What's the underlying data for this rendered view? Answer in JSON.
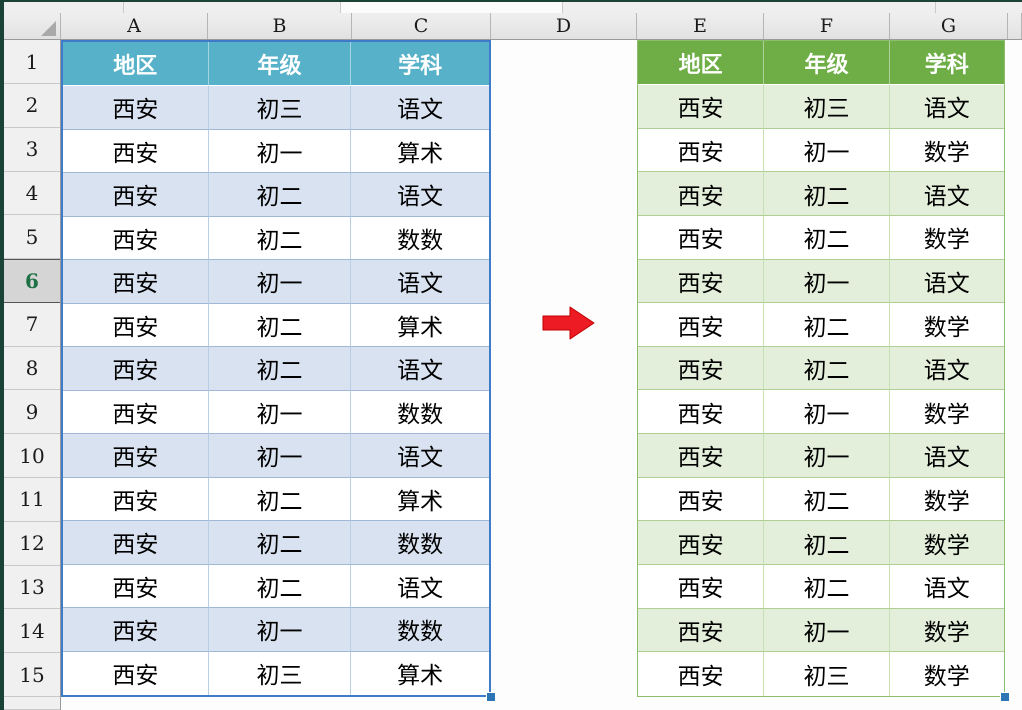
{
  "app": {
    "name": "spreadsheet-grid"
  },
  "column_headers": [
    "A",
    "B",
    "C",
    "D",
    "E",
    "F",
    "G"
  ],
  "row_numbers": [
    "1",
    "2",
    "3",
    "4",
    "5",
    "6",
    "7",
    "8",
    "9",
    "10",
    "11",
    "12",
    "13",
    "14",
    "15"
  ],
  "active_row": "6",
  "left_table": {
    "headers": [
      "地区",
      "年级",
      "学科"
    ],
    "rows": [
      [
        "西安",
        "初三",
        "语文"
      ],
      [
        "西安",
        "初一",
        "算术"
      ],
      [
        "西安",
        "初二",
        "语文"
      ],
      [
        "西安",
        "初二",
        "数数"
      ],
      [
        "西安",
        "初一",
        "语文"
      ],
      [
        "西安",
        "初二",
        "算术"
      ],
      [
        "西安",
        "初二",
        "语文"
      ],
      [
        "西安",
        "初一",
        "数数"
      ],
      [
        "西安",
        "初一",
        "语文"
      ],
      [
        "西安",
        "初二",
        "算术"
      ],
      [
        "西安",
        "初二",
        "数数"
      ],
      [
        "西安",
        "初二",
        "语文"
      ],
      [
        "西安",
        "初一",
        "数数"
      ],
      [
        "西安",
        "初三",
        "算术"
      ]
    ],
    "header_color": "#57B1C8",
    "band_color": "#D9E2F0"
  },
  "right_table": {
    "headers": [
      "地区",
      "年级",
      "学科"
    ],
    "rows": [
      [
        "西安",
        "初三",
        "语文"
      ],
      [
        "西安",
        "初一",
        "数学"
      ],
      [
        "西安",
        "初二",
        "语文"
      ],
      [
        "西安",
        "初二",
        "数学"
      ],
      [
        "西安",
        "初一",
        "语文"
      ],
      [
        "西安",
        "初二",
        "数学"
      ],
      [
        "西安",
        "初二",
        "语文"
      ],
      [
        "西安",
        "初一",
        "数学"
      ],
      [
        "西安",
        "初一",
        "语文"
      ],
      [
        "西安",
        "初二",
        "数学"
      ],
      [
        "西安",
        "初二",
        "数学"
      ],
      [
        "西安",
        "初二",
        "语文"
      ],
      [
        "西安",
        "初一",
        "数学"
      ],
      [
        "西安",
        "初三",
        "数学"
      ]
    ],
    "header_color": "#6FAE47",
    "band_color": "#E3EFDB"
  },
  "icons": {
    "arrow": "red-right-arrow",
    "corner": "select-all-triangle"
  },
  "colors": {
    "selection_border": "#3F7BC8",
    "fill_handle": "#2E75B6",
    "arrow_red": "#EC1B24",
    "active_row_green": "#1E7145",
    "frame_dark_green": "#1B4237"
  }
}
